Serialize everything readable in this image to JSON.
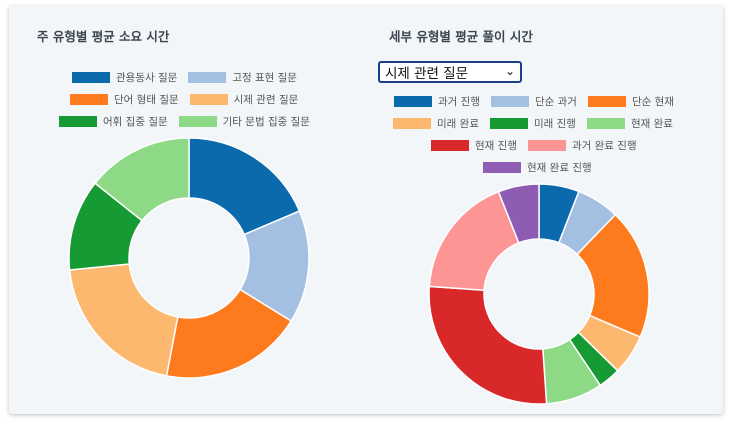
{
  "left": {
    "title": "주 유형별 평균 소요 시간"
  },
  "right": {
    "title": "세부 유형별 평균 풀이 시간",
    "select": {
      "value": "시제 관련 질문",
      "chevron_icon": "chevron-down-icon"
    }
  },
  "chart_data": [
    {
      "type": "pie",
      "donut": true,
      "title": "주 유형별 평균 소요 시간",
      "legend_position": "top",
      "categories": [
        "관용동사 질문",
        "고정 표현 질문",
        "단어 형태 질문",
        "시제 관련 질문",
        "어휘 집중 질문",
        "기타 문법 집중 질문"
      ],
      "values": [
        18.6,
        15.2,
        19.2,
        20.4,
        12.3,
        14.3
      ],
      "colors": [
        "#0a6aac",
        "#a3c0e3",
        "#fd7a1d",
        "#fdb86f",
        "#169a34",
        "#8dd985"
      ]
    },
    {
      "type": "pie",
      "donut": true,
      "title": "세부 유형별 평균 풀이 시간",
      "legend_position": "top",
      "categories": [
        "과거 진행",
        "단순 과거",
        "단순 현재",
        "미래 완료",
        "미래 진행",
        "현재 완료",
        "현재 진행",
        "과거 완료 진행",
        "현재 완료 진행"
      ],
      "values": [
        5.9,
        6.3,
        19.2,
        5.9,
        3.3,
        8.3,
        27.2,
        17.9,
        6.0
      ],
      "colors": [
        "#0a6aac",
        "#a3c0e3",
        "#fd7a1d",
        "#fdb86f",
        "#169a34",
        "#8dd985",
        "#d8282a",
        "#fe9595",
        "#8f5cb4"
      ]
    }
  ]
}
